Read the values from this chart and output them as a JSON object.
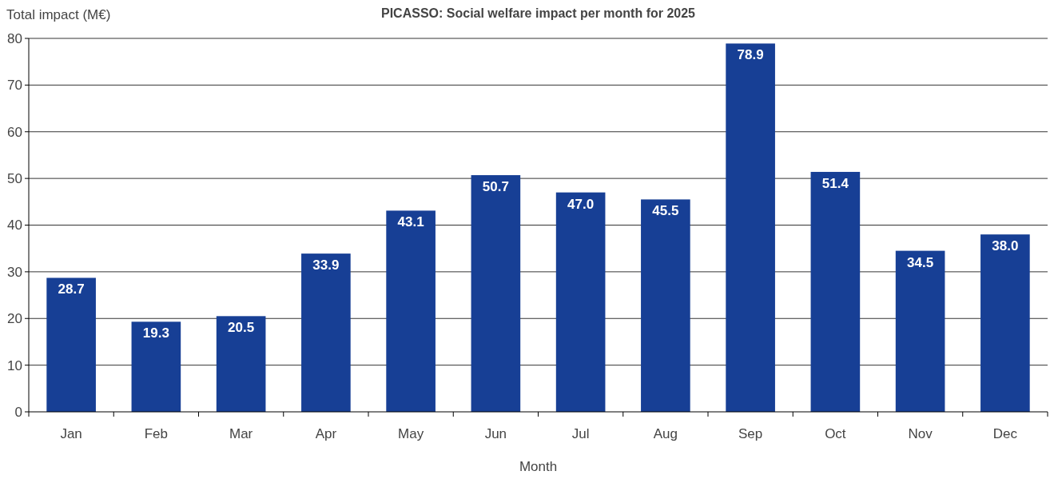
{
  "chart_data": {
    "type": "bar",
    "title": "PICASSO: Social welfare impact per month for 2025",
    "xlabel": "Month",
    "ylabel": "Total impact (M€)",
    "categories": [
      "Jan",
      "Feb",
      "Mar",
      "Apr",
      "May",
      "Jun",
      "Jul",
      "Aug",
      "Sep",
      "Oct",
      "Nov",
      "Dec"
    ],
    "values": [
      28.7,
      19.3,
      20.5,
      33.9,
      43.1,
      50.7,
      47.0,
      45.5,
      78.9,
      51.4,
      34.5,
      38.0
    ],
    "value_labels": [
      "28.7",
      "19.3",
      "20.5",
      "33.9",
      "43.1",
      "50.7",
      "47.0",
      "45.5",
      "78.9",
      "51.4",
      "34.5",
      "38.0"
    ],
    "color": "#173f95",
    "ylim": [
      0,
      80
    ],
    "yticks": [
      0,
      10,
      20,
      30,
      40,
      50,
      60,
      70,
      80
    ],
    "grid": "y"
  }
}
